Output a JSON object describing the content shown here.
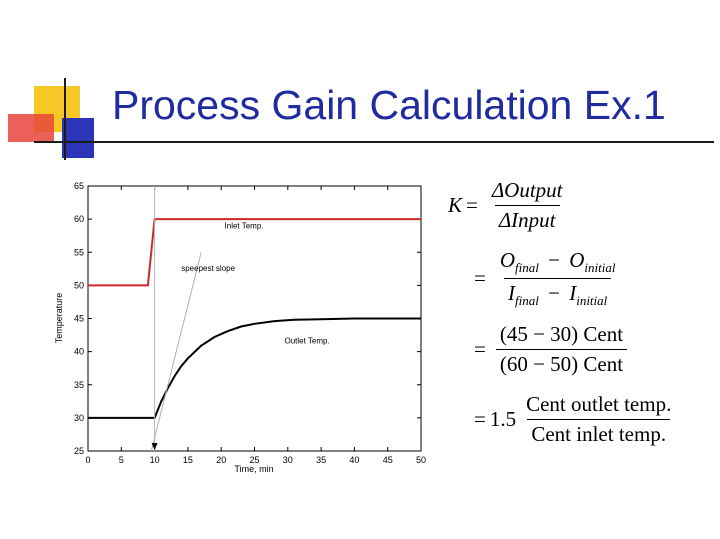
{
  "slide": {
    "title": "Process Gain Calculation Ex.1"
  },
  "colors": {
    "title": "#1f2b9e",
    "inlet_series": "#cc2a2a",
    "outlet_series": "#000000",
    "deco_yellow": "#f6c825",
    "deco_red": "#e8453c",
    "deco_blue": "#2a35b8"
  },
  "chart_data": {
    "type": "line",
    "title": "",
    "xlabel": "Time, min",
    "ylabel": "Temperature",
    "xlim": [
      0,
      50
    ],
    "ylim": [
      25,
      65
    ],
    "x_ticks": [
      "0",
      "5",
      "10",
      "15",
      "20",
      "25",
      "30",
      "35",
      "40",
      "45",
      "50"
    ],
    "y_ticks": [
      "25",
      "30",
      "35",
      "40",
      "45",
      "50",
      "55",
      "60",
      "65"
    ],
    "grid": false,
    "series": [
      {
        "name": "Inlet Temp.",
        "color": "#cc2a2a",
        "x": [
          0,
          9,
          10,
          50
        ],
        "y": [
          50,
          50,
          60,
          60
        ]
      },
      {
        "name": "Outlet Temp.",
        "color": "#000000",
        "x": [
          0,
          10,
          11,
          12,
          13,
          14,
          15,
          17,
          19,
          21,
          23,
          25,
          28,
          31,
          35,
          40,
          45,
          50
        ],
        "y": [
          30,
          30,
          32.5,
          34.5,
          36.3,
          37.8,
          39.0,
          40.9,
          42.2,
          43.1,
          43.8,
          44.2,
          44.6,
          44.8,
          44.9,
          45,
          45,
          45
        ]
      }
    ],
    "annotations": {
      "inlet_label": "Inlet Temp.",
      "outlet_label": "Outlet Temp.",
      "slope_label": "speepest slope",
      "steepest_slope_line": {
        "x": [
          9.5,
          17
        ],
        "y": [
          25,
          55
        ]
      },
      "marker_x": 10
    }
  },
  "formulas": {
    "K": "K",
    "eq": "=",
    "delta_output": "ΔOutput",
    "delta_input": "ΔInput",
    "O": "O",
    "I": "I",
    "final_sub": "final",
    "initial_sub": "initial",
    "minus": "−",
    "num_values": "(45 − 30) Cent",
    "den_values": "(60 − 50) Cent",
    "gain_value": "1.5",
    "gain_units_num": "Cent outlet temp.",
    "gain_units_den": "Cent inlet temp."
  }
}
